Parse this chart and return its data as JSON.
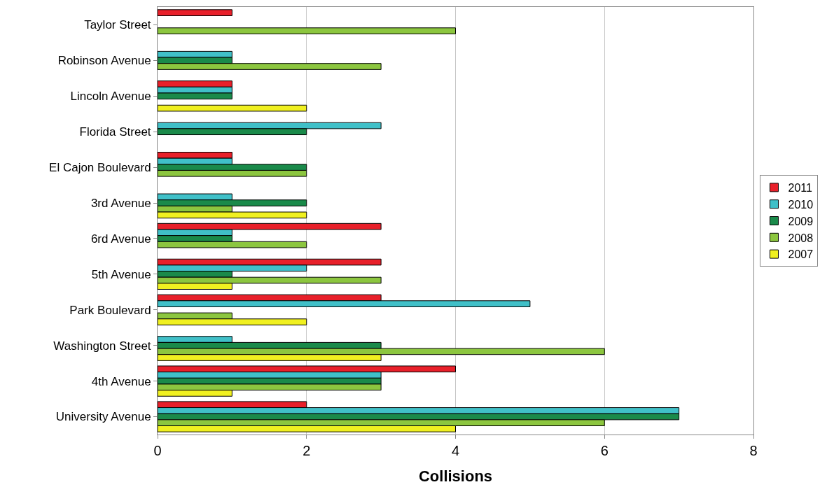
{
  "chart_data": {
    "type": "bar",
    "orientation": "horizontal",
    "xlabel": "Collisions",
    "categories": [
      "Taylor Street",
      "Robinson Avenue",
      "Lincoln Avenue",
      "Florida Street",
      "El Cajon Boulevard",
      "3rd Avenue",
      "6rd Avenue",
      "5th Avenue",
      "Park Boulevard",
      "Washington Street",
      "4th Avenue",
      "University Avenue"
    ],
    "series": [
      {
        "name": "2011",
        "color": "#e8202a",
        "values": [
          1,
          null,
          1,
          null,
          1,
          null,
          3,
          3,
          3,
          null,
          4,
          2
        ]
      },
      {
        "name": "2010",
        "color": "#40c0c8",
        "values": [
          null,
          1,
          1,
          3,
          1,
          1,
          1,
          2,
          5,
          1,
          3,
          7
        ]
      },
      {
        "name": "2009",
        "color": "#1a8a4a",
        "values": [
          null,
          1,
          1,
          2,
          2,
          2,
          1,
          1,
          null,
          3,
          3,
          7
        ]
      },
      {
        "name": "2008",
        "color": "#8cc63f",
        "values": [
          4,
          3,
          null,
          null,
          2,
          1,
          2,
          3,
          1,
          6,
          3,
          6
        ]
      },
      {
        "name": "2007",
        "color": "#f0f020",
        "values": [
          null,
          null,
          2,
          null,
          null,
          2,
          null,
          1,
          2,
          3,
          1,
          4
        ]
      }
    ],
    "xlim": [
      0,
      8
    ],
    "xticks": [
      0,
      2,
      4,
      6,
      8
    ],
    "grid": "x",
    "legend": "right"
  }
}
